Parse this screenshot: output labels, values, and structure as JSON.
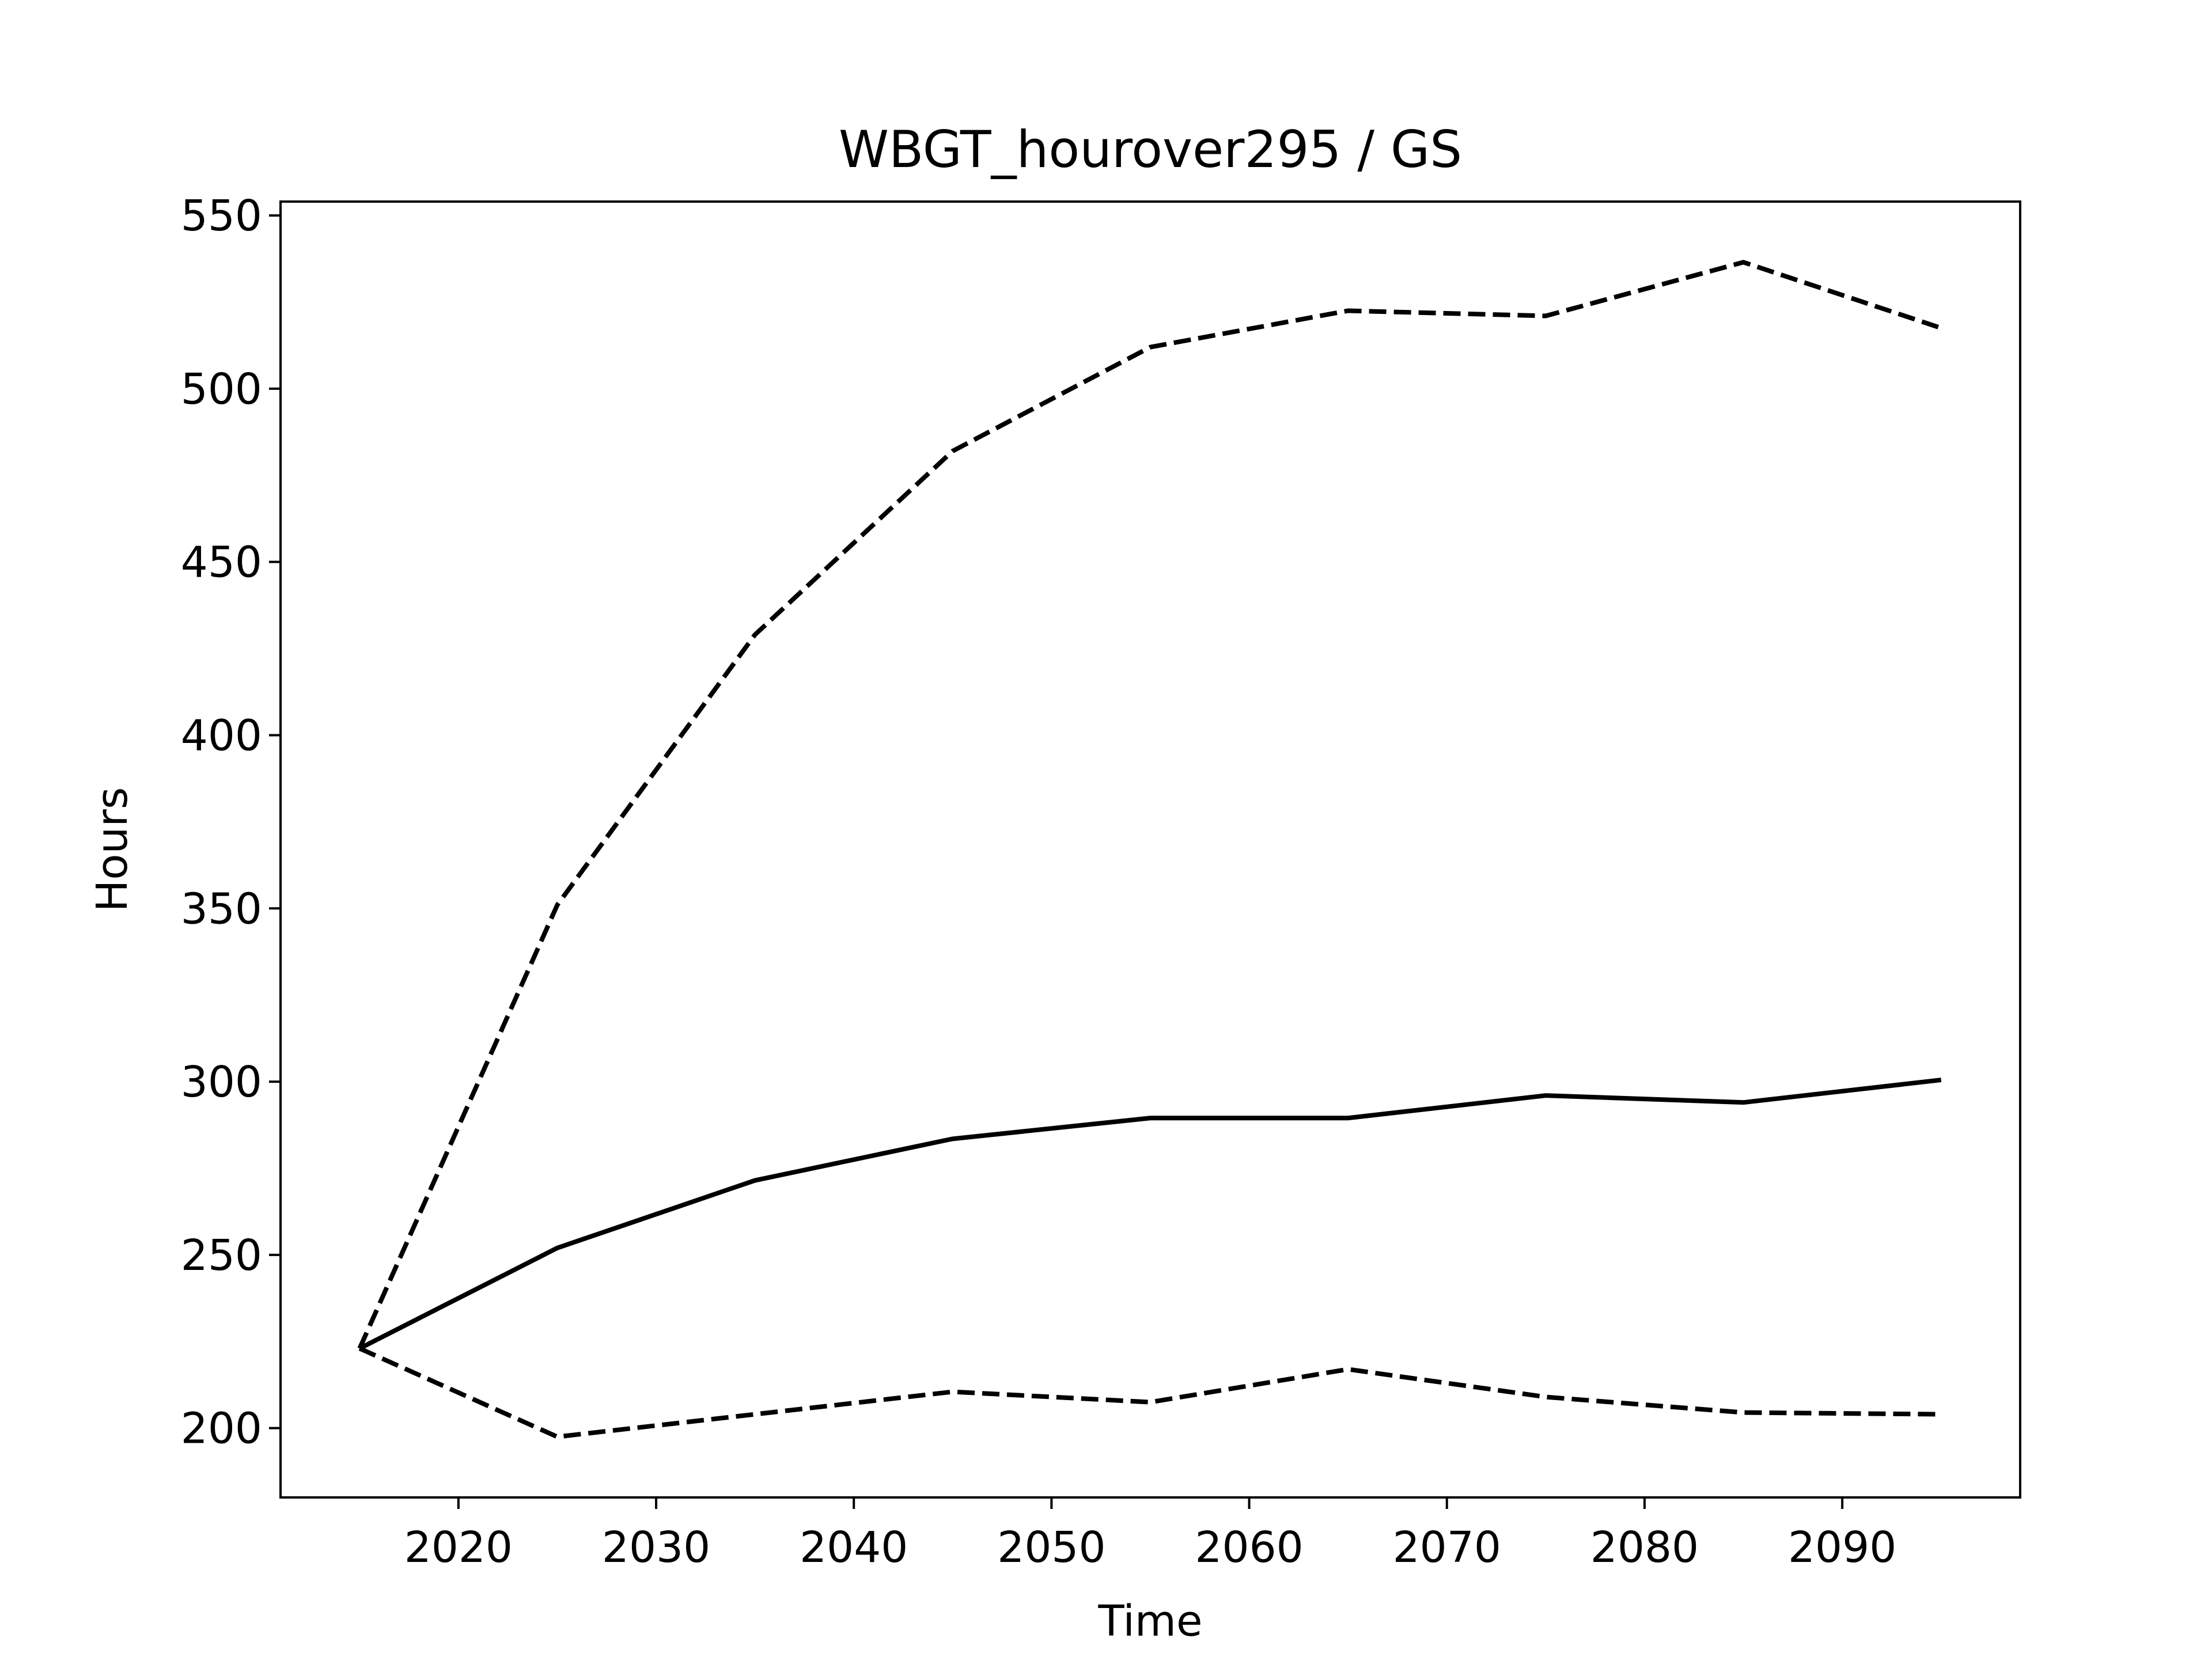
{
  "chart_data": {
    "type": "line",
    "title": "WBGT_hourover295 / GS",
    "xlabel": "Time",
    "ylabel": "Hours",
    "x": [
      2015,
      2025,
      2035,
      2045,
      2055,
      2065,
      2075,
      2085,
      2095
    ],
    "series": [
      {
        "color": "#000000",
        "style": "solid",
        "values": [
          223,
          252,
          271.5,
          283.5,
          289.5,
          289.5,
          296,
          294,
          300.5
        ]
      },
      {
        "color": "#000000",
        "style": "dashed",
        "values": [
          223,
          351,
          429,
          482,
          512,
          522.5,
          521,
          536.5,
          517.5
        ]
      },
      {
        "color": "#000000",
        "style": "dashed",
        "values": [
          223,
          197.5,
          204,
          210.5,
          207.5,
          217,
          209,
          204.5,
          204
        ]
      }
    ],
    "xlim": [
      2011,
      2099
    ],
    "xticks": [
      2020,
      2030,
      2040,
      2050,
      2060,
      2070,
      2080,
      2090
    ],
    "ylim": [
      180,
      554
    ],
    "yticks": [
      200,
      250,
      300,
      350,
      400,
      450,
      500,
      550
    ],
    "grid": false
  }
}
